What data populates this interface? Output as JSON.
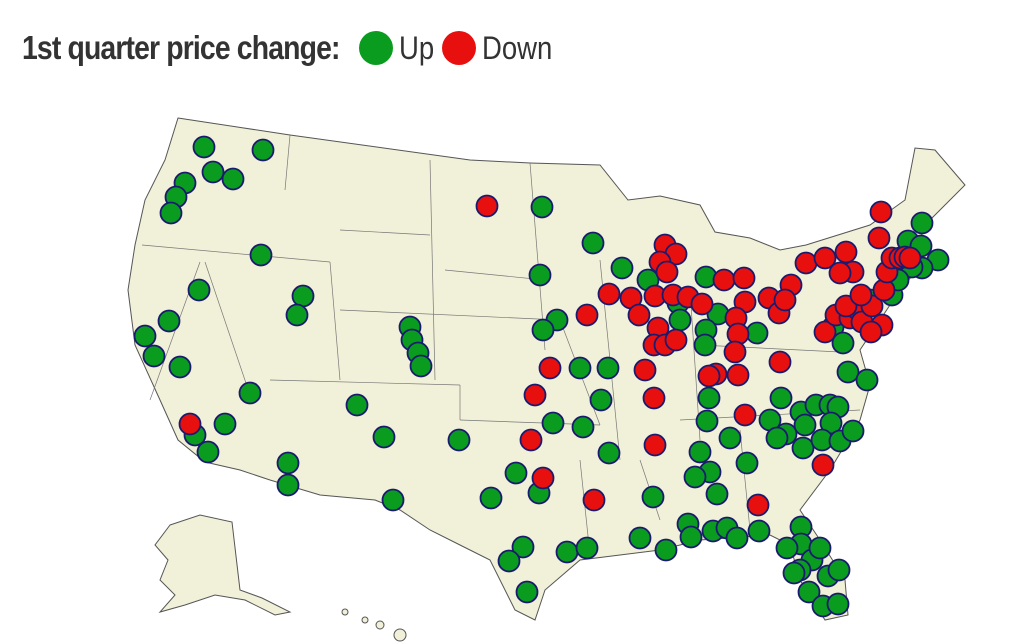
{
  "legend": {
    "title": "1st quarter price change:",
    "items": [
      {
        "label": "Up",
        "color": "#0a9c1f"
      },
      {
        "label": "Down",
        "color": "#e8100f"
      }
    ]
  },
  "map": {
    "land_color": "#f1f0d8",
    "border_color": "#555555",
    "marker_outline": "#1a1a6e"
  }
}
